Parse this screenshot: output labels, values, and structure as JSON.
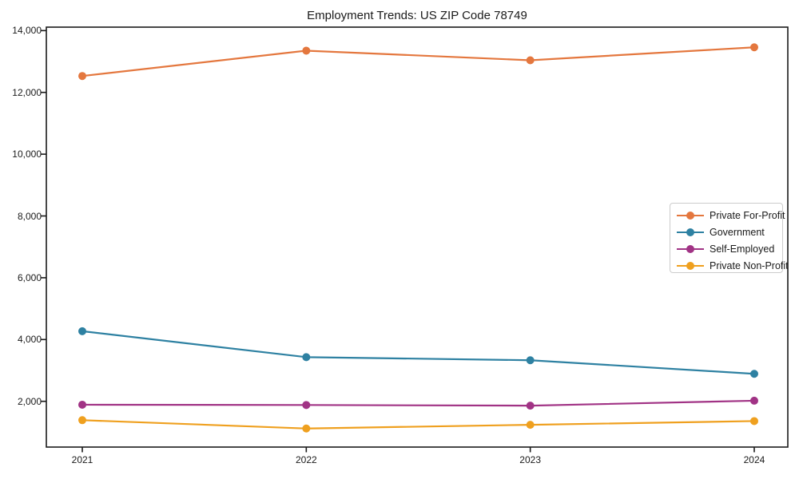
{
  "chart_data": {
    "type": "line",
    "title": "Employment Trends: US ZIP Code 78749",
    "x": [
      2021,
      2022,
      2023,
      2024
    ],
    "x_tick_labels": [
      "2021",
      "2022",
      "2023",
      "2024"
    ],
    "y_ticks": [
      2000,
      4000,
      6000,
      8000,
      10000,
      12000,
      14000
    ],
    "ylim": [
      519,
      14112
    ],
    "grid": false,
    "marker": "circle",
    "legend_position": "center right",
    "axis_color": "#1a1a1a",
    "series": [
      {
        "name": "Private For-Profit",
        "color": "#e4773e",
        "values": [
          12530,
          13350,
          13040,
          13460
        ]
      },
      {
        "name": "Government",
        "color": "#2e81a2",
        "values": [
          4270,
          3430,
          3330,
          2890
        ]
      },
      {
        "name": "Self-Employed",
        "color": "#a13385",
        "values": [
          1890,
          1880,
          1860,
          2020
        ]
      },
      {
        "name": "Private Non-Profit",
        "color": "#efa01f",
        "values": [
          1390,
          1120,
          1240,
          1360
        ]
      }
    ]
  }
}
